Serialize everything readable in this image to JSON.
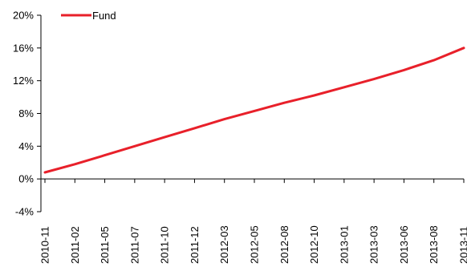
{
  "chart_data": {
    "type": "line",
    "title": "",
    "xlabel": "",
    "ylabel": "",
    "ylim": [
      -4,
      20
    ],
    "y_ticks": [
      -4,
      0,
      4,
      8,
      12,
      16,
      20
    ],
    "y_tick_labels": [
      "-4%",
      "0%",
      "4%",
      "8%",
      "12%",
      "16%",
      "20%"
    ],
    "x_tick_labels": [
      "2010-11",
      "2011-02",
      "2011-05",
      "2011-07",
      "2011-10",
      "2011-12",
      "2012-03",
      "2012-05",
      "2012-08",
      "2012-10",
      "2013-01",
      "2013-03",
      "2013-06",
      "2013-08",
      "2013-11"
    ],
    "grid": false,
    "legend": {
      "position": "top-left",
      "entries": [
        "Fund"
      ]
    },
    "colors": {
      "series": "#e8202a",
      "axis": "#000000"
    },
    "series": [
      {
        "name": "Fund",
        "x": [
          "2010-11",
          "2011-02",
          "2011-05",
          "2011-07",
          "2011-10",
          "2011-12",
          "2012-03",
          "2012-05",
          "2012-08",
          "2012-10",
          "2013-01",
          "2013-03",
          "2013-06",
          "2013-08",
          "2013-11"
        ],
        "values": [
          0.8,
          1.8,
          2.9,
          4.0,
          5.1,
          6.2,
          7.3,
          8.3,
          9.3,
          10.2,
          11.2,
          12.2,
          13.3,
          14.5,
          16.0
        ]
      }
    ]
  }
}
